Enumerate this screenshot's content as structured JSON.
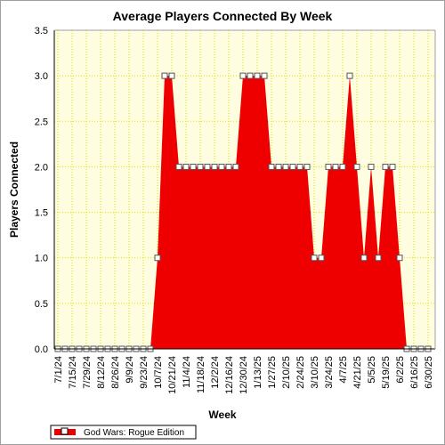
{
  "chart_data": {
    "type": "area",
    "title": "Average Players Connected By Week",
    "xlabel": "Week",
    "ylabel": "Players Connected",
    "ylim": [
      0,
      3.5
    ],
    "yticks": [
      "0.0",
      "0.5",
      "1.0",
      "1.5",
      "2.0",
      "2.5",
      "3.0",
      "3.5"
    ],
    "xtick_labels": [
      "7/1/24",
      "7/15/24",
      "7/29/24",
      "8/12/24",
      "8/26/24",
      "9/9/24",
      "9/23/24",
      "10/7/24",
      "10/21/24",
      "11/4/24",
      "11/18/24",
      "12/2/24",
      "12/16/24",
      "12/30/24",
      "1/13/25",
      "1/27/25",
      "2/10/25",
      "2/24/25",
      "3/10/25",
      "3/24/25",
      "4/7/25",
      "4/21/25",
      "5/5/25",
      "5/19/25",
      "6/2/25",
      "6/16/25",
      "6/30/25"
    ],
    "grid": true,
    "legend_position": "bottom-left",
    "colors": {
      "fill": "#ee0000",
      "plot_background": "#fffde0",
      "grid": "#e0e000"
    },
    "series": [
      {
        "name": "God Wars: Rogue Edition",
        "x": [
          "7/1/24",
          "7/8/24",
          "7/15/24",
          "7/22/24",
          "7/29/24",
          "8/5/24",
          "8/12/24",
          "8/19/24",
          "8/26/24",
          "9/2/24",
          "9/9/24",
          "9/16/24",
          "9/23/24",
          "9/30/24",
          "10/7/24",
          "10/14/24",
          "10/21/24",
          "10/28/24",
          "11/4/24",
          "11/11/24",
          "11/18/24",
          "11/25/24",
          "12/2/24",
          "12/9/24",
          "12/16/24",
          "12/23/24",
          "12/30/24",
          "1/6/25",
          "1/13/25",
          "1/20/25",
          "1/27/25",
          "2/3/25",
          "2/10/25",
          "2/17/25",
          "2/24/25",
          "3/3/25",
          "3/10/25",
          "3/17/25",
          "3/24/25",
          "3/31/25",
          "4/7/25",
          "4/14/25",
          "4/21/25",
          "4/28/25",
          "5/5/25",
          "5/12/25",
          "5/19/25",
          "5/26/25",
          "6/2/25",
          "6/9/25",
          "6/16/25",
          "6/23/25",
          "6/30/25"
        ],
        "values": [
          0,
          0,
          0,
          0,
          0,
          0,
          0,
          0,
          0,
          0,
          0,
          0,
          0,
          0,
          1,
          3,
          3,
          2,
          2,
          2,
          2,
          2,
          2,
          2,
          2,
          2,
          3,
          3,
          3,
          3,
          2,
          2,
          2,
          2,
          2,
          2,
          1,
          1,
          2,
          2,
          2,
          3,
          2,
          1,
          2,
          1,
          2,
          2,
          1,
          0,
          0,
          0,
          0
        ]
      }
    ]
  }
}
